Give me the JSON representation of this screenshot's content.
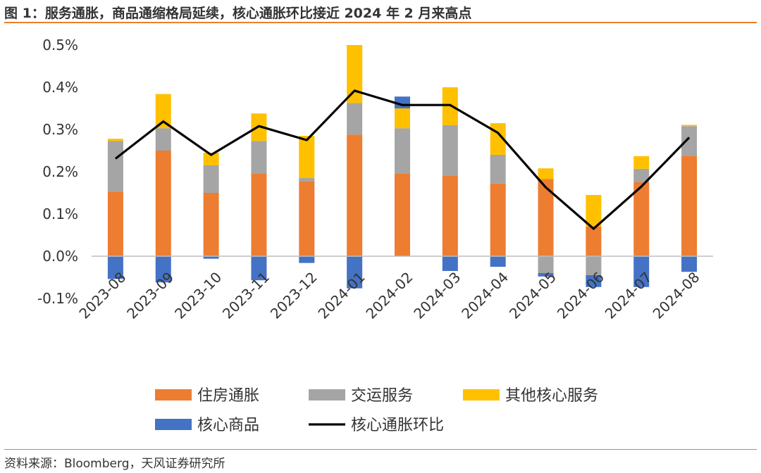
{
  "title": "图 1：服务通胀，商品通缩格局延续，核心通胀环比接近 2024 年 2 月来高点",
  "source": "资料来源：Bloomberg，天风证券研究所",
  "colors": {
    "housing": "#ED7D31",
    "transport": "#A5A5A5",
    "other": "#FFC000",
    "goods": "#4472C4",
    "line": "#000000",
    "rule": "#E8802C"
  },
  "chart_data": {
    "type": "bar",
    "stacked": true,
    "categories": [
      "2023-08",
      "2023-09",
      "2023-10",
      "2023-11",
      "2023-12",
      "2024-01",
      "2024-02",
      "2024-03",
      "2024-04",
      "2024-05",
      "2024-06",
      "2024-07",
      "2024-08"
    ],
    "ylim": [
      -0.1,
      0.5
    ],
    "yticks": [
      "-0.1%",
      "0.0%",
      "0.1%",
      "0.2%",
      "0.3%",
      "0.4%",
      "0.5%"
    ],
    "series": [
      {
        "name": "住房通胀",
        "type": "bar",
        "color": "#ED7D31",
        "values": [
          0.153,
          0.25,
          0.15,
          0.196,
          0.178,
          0.288,
          0.195,
          0.19,
          0.172,
          0.183,
          0.07,
          0.175,
          0.238
        ]
      },
      {
        "name": "交运服务",
        "type": "bar",
        "color": "#A5A5A5",
        "values": [
          0.12,
          0.053,
          0.065,
          0.077,
          0.007,
          0.075,
          0.108,
          0.12,
          0.068,
          -0.04,
          -0.045,
          0.032,
          0.07
        ]
      },
      {
        "name": "其他核心服务",
        "type": "bar",
        "color": "#FFC000",
        "values": [
          0.005,
          0.081,
          0.03,
          0.065,
          0.1,
          0.137,
          0.047,
          0.09,
          0.075,
          0.025,
          0.075,
          0.03,
          0.003
        ]
      },
      {
        "name": "核心商品",
        "type": "bar",
        "color": "#4472C4",
        "values": [
          -0.054,
          -0.062,
          -0.006,
          -0.057,
          -0.016,
          -0.076,
          0.028,
          -0.035,
          -0.025,
          -0.008,
          -0.028,
          -0.073,
          -0.037
        ]
      },
      {
        "name": "核心通胀环比",
        "type": "line",
        "color": "#000000",
        "values": [
          0.231,
          0.319,
          0.24,
          0.308,
          0.275,
          0.392,
          0.358,
          0.358,
          0.292,
          0.163,
          0.065,
          0.165,
          0.281
        ]
      }
    ],
    "legend_position": "bottom",
    "grid": false
  }
}
